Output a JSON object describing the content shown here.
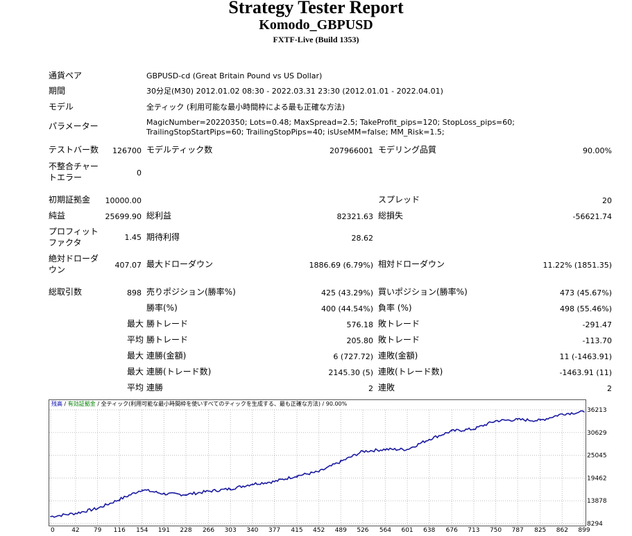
{
  "header": {
    "title": "Strategy Tester Report",
    "subtitle": "Komodo_GBPUSD",
    "build": "FXTF-Live (Build 1353)"
  },
  "info": {
    "pair_label": "通貨ペア",
    "pair_value": "GBPUSD-cd (Great Britain Pound vs US Dollar)",
    "period_label": "期間",
    "period_value": "30分足(M30) 2012.01.02 08:30 - 2022.03.31 23:30 (2012.01.01 - 2022.04.01)",
    "model_label": "モデル",
    "model_value": "全ティック (利用可能な最小時間枠による最も正確な方法)",
    "params_label": "パラメーター",
    "params_value": "MagicNumber=20220350; Lots=0.48; MaxSpread=2.5; TakeProfit_pips=120; StopLoss_pips=60; TrailingStopStartPips=60; TrailingStopPips=40; isUseMM=false; MM_Risk=1.5;"
  },
  "stats": {
    "bars_label": "テストバー数",
    "bars_value": "126700",
    "ticks_label": "モデルティック数",
    "ticks_value": "207966001",
    "quality_label": "モデリング品質",
    "quality_value": "90.00%",
    "mismatch_label": "不整合チャートエラー",
    "mismatch_value": "0",
    "deposit_label": "初期証拠金",
    "deposit_value": "10000.00",
    "spread_label": "スプレッド",
    "spread_value": "20",
    "net_label": "純益",
    "net_value": "25699.90",
    "gross_profit_label": "総利益",
    "gross_profit_value": "82321.63",
    "gross_loss_label": "総損失",
    "gross_loss_value": "-56621.74",
    "pf_label": "プロフィットファクタ",
    "pf_value": "1.45",
    "expected_label": "期待利得",
    "expected_value": "28.62",
    "abs_dd_label": "絶対ドローダウン",
    "abs_dd_value": "407.07",
    "max_dd_label": "最大ドローダウン",
    "max_dd_value": "1886.69 (6.79%)",
    "rel_dd_label": "相対ドローダウン",
    "rel_dd_value": "11.22% (1851.35)",
    "total_trades_label": "総取引数",
    "total_trades_value": "898",
    "short_label": "売りポジション(勝率%)",
    "short_value": "425 (43.29%)",
    "long_label": "買いポジション(勝率%)",
    "long_value": "473 (45.67%)",
    "winrate_label": "勝率(%)",
    "winrate_value": "400 (44.54%)",
    "lossrate_label": "負率 (%)",
    "lossrate_value": "498 (55.46%)",
    "max_prefix": "最大",
    "avg_prefix": "平均",
    "max_win_label": "勝トレード",
    "max_win_value": "576.18",
    "max_loss_label": "敗トレード",
    "max_loss_value": "-291.47",
    "avg_win_label": "勝トレード",
    "avg_win_value": "205.80",
    "avg_loss_label": "敗トレード",
    "avg_loss_value": "-113.70",
    "consec_wins_money_label": "連勝(金額)",
    "consec_wins_money_value": "6 (727.72)",
    "consec_losses_money_label": "連敗(金額)",
    "consec_losses_money_value": "11 (-1463.91)",
    "consec_wins_count_label": "連勝(トレード数)",
    "consec_wins_count_value": "2145.30 (5)",
    "consec_losses_count_label": "連敗(トレード数)",
    "consec_losses_count_value": "-1463.91 (11)",
    "avg_consec_wins_label": "連勝",
    "avg_consec_wins_value": "2",
    "avg_consec_losses_label": "連敗",
    "avg_consec_losses_value": "2"
  },
  "chart_legend": {
    "balance": "残高",
    "sep1": " / ",
    "equity": "有効証拠金",
    "sep2": " / ",
    "text": "全ティック(利用可能な最小時間枠を使いすべてのティックを生成する、最も正確な方法) / 90.00%"
  },
  "chart_data": {
    "type": "line",
    "x": [
      0,
      42,
      79,
      116,
      154,
      191,
      228,
      266,
      303,
      340,
      377,
      415,
      452,
      489,
      526,
      564,
      601,
      638,
      676,
      713,
      750,
      787,
      825,
      862,
      899
    ],
    "x_ticks": [
      "0",
      "42",
      "79",
      "116",
      "154",
      "191",
      "228",
      "266",
      "303",
      "340",
      "377",
      "415",
      "452",
      "489",
      "526",
      "564",
      "601",
      "638",
      "676",
      "713",
      "750",
      "787",
      "825",
      "862",
      "899"
    ],
    "y_ticks": [
      "36213",
      "30629",
      "25045",
      "19462",
      "13878",
      "8294"
    ],
    "ylim": [
      8294,
      36213
    ],
    "xlim": [
      0,
      899
    ],
    "series": [
      {
        "color": "#1a1aa0",
        "values": [
          10000,
          10800,
          12000,
          14200,
          16600,
          15600,
          15400,
          16200,
          16800,
          18000,
          18600,
          20000,
          21000,
          23500,
          26000,
          26500,
          26500,
          29000,
          31000,
          31500,
          33500,
          33800,
          33600,
          35200,
          35700
        ]
      }
    ],
    "grid": true
  }
}
